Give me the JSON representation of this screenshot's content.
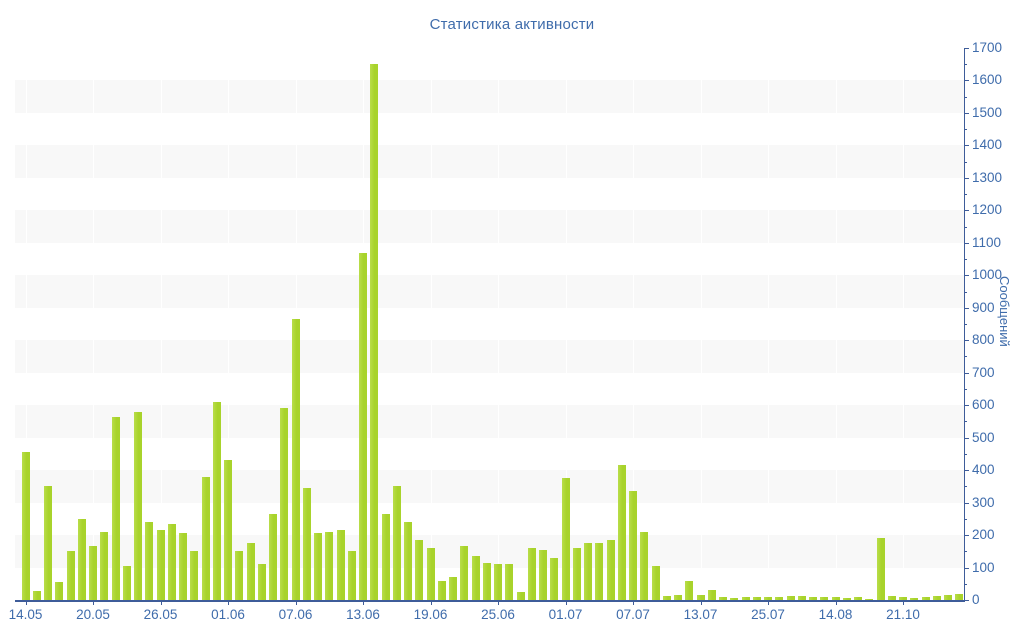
{
  "title": "Статистика активности",
  "chart_data": {
    "type": "bar",
    "title": "Статистика активности",
    "xlabel": "",
    "ylabel": "Сообщений",
    "ylim": [
      0,
      1700
    ],
    "y_major_step": 100,
    "y_minor_step": 50,
    "grid": "alternating horizontal gray bands, faint white vertical lines at date ticks",
    "legend_position": "none",
    "bar_color": "#a8d32b",
    "bar_color_light": "#b9dd4a",
    "band_color": "#f8f8f8",
    "axis_color": "#3e5c99",
    "text_color": "#3f6cab",
    "x_tick_labels": [
      "14.05",
      "20.05",
      "26.05",
      "01.06",
      "07.06",
      "13.06",
      "19.06",
      "25.06",
      "01.07",
      "07.07",
      "13.07",
      "25.07",
      "14.08",
      "21.10"
    ],
    "x_tick_every_n_bars": 6,
    "values": [
      455,
      28,
      350,
      55,
      150,
      250,
      165,
      210,
      565,
      105,
      580,
      240,
      215,
      235,
      205,
      150,
      380,
      610,
      430,
      150,
      175,
      110,
      265,
      590,
      865,
      345,
      205,
      210,
      215,
      150,
      1070,
      1650,
      265,
      350,
      240,
      185,
      160,
      60,
      70,
      165,
      135,
      115,
      110,
      110,
      25,
      160,
      155,
      130,
      375,
      160,
      175,
      175,
      185,
      415,
      335,
      210,
      105,
      12,
      16,
      60,
      16,
      30,
      8,
      5,
      8,
      10,
      8,
      10,
      12,
      12,
      10,
      8,
      10,
      7,
      10,
      2,
      190,
      13,
      10,
      5,
      10,
      12,
      15,
      18
    ]
  }
}
